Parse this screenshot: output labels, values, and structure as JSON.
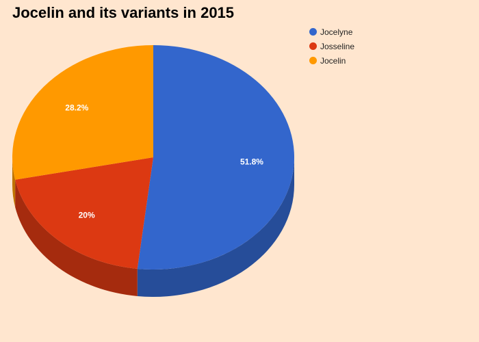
{
  "chart_data": {
    "type": "pie",
    "title": "Jocelin and its variants in 2015",
    "is_3d": true,
    "legend_position": "top-right",
    "slices": [
      {
        "name": "Jocelyne",
        "percent": 51.8,
        "label": "51.8%",
        "color": "#3366cc",
        "side_color": "#264d99"
      },
      {
        "name": "Josseline",
        "percent": 20.0,
        "label": "20%",
        "color": "#dc3912",
        "side_color": "#a52b0e"
      },
      {
        "name": "Jocelin",
        "percent": 28.2,
        "label": "28.2%",
        "color": "#ff9900",
        "side_color": "#bf7300"
      }
    ]
  }
}
